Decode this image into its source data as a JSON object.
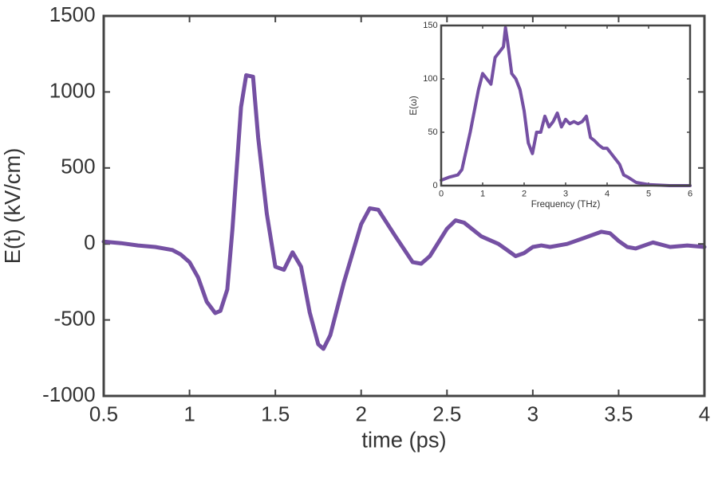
{
  "chart_data": [
    {
      "type": "line",
      "xlabel": "time (ps)",
      "ylabel": "E(t) (kV/cm)",
      "color": "#7550a3",
      "xlim": [
        0.5,
        4
      ],
      "ylim": [
        -1000,
        1500
      ],
      "xticks": [
        0.5,
        1,
        1.5,
        2,
        2.5,
        3,
        3.5,
        4
      ],
      "yticks": [
        -1000,
        -500,
        0,
        500,
        1000,
        1500
      ],
      "x": [
        0.5,
        0.6,
        0.7,
        0.8,
        0.9,
        0.95,
        1.0,
        1.05,
        1.1,
        1.15,
        1.18,
        1.22,
        1.25,
        1.3,
        1.33,
        1.37,
        1.4,
        1.45,
        1.5,
        1.55,
        1.6,
        1.65,
        1.7,
        1.75,
        1.78,
        1.82,
        1.9,
        2.0,
        2.05,
        2.1,
        2.2,
        2.3,
        2.35,
        2.4,
        2.5,
        2.55,
        2.6,
        2.7,
        2.8,
        2.85,
        2.9,
        2.95,
        3.0,
        3.05,
        3.1,
        3.2,
        3.3,
        3.4,
        3.45,
        3.5,
        3.55,
        3.6,
        3.7,
        3.8,
        3.9,
        4.0
      ],
      "values": [
        15,
        5,
        -10,
        -20,
        -40,
        -70,
        -120,
        -220,
        -380,
        -455,
        -440,
        -300,
        100,
        900,
        1110,
        1100,
        700,
        200,
        -150,
        -170,
        -55,
        -150,
        -450,
        -660,
        -690,
        -600,
        -250,
        130,
        235,
        225,
        50,
        -120,
        -130,
        -80,
        100,
        155,
        140,
        50,
        0,
        -40,
        -80,
        -60,
        -20,
        -10,
        -20,
        0,
        40,
        80,
        70,
        20,
        -20,
        -30,
        10,
        -20,
        -10,
        -20
      ]
    },
    {
      "type": "line",
      "xlabel": "Frequency (THz)",
      "ylabel": "E(ω)",
      "color": "#7550a3",
      "xlim": [
        0,
        6
      ],
      "ylim": [
        0,
        150
      ],
      "xticks": [
        0,
        1,
        2,
        3,
        4,
        5,
        6
      ],
      "yticks": [
        0,
        50,
        100,
        150
      ],
      "x": [
        0,
        0.2,
        0.4,
        0.5,
        0.7,
        0.9,
        1.0,
        1.1,
        1.2,
        1.3,
        1.4,
        1.5,
        1.55,
        1.6,
        1.7,
        1.8,
        1.9,
        2.0,
        2.1,
        2.2,
        2.3,
        2.4,
        2.5,
        2.6,
        2.7,
        2.8,
        2.9,
        3.0,
        3.1,
        3.2,
        3.3,
        3.4,
        3.5,
        3.6,
        3.7,
        3.8,
        3.9,
        4.0,
        4.1,
        4.2,
        4.3,
        4.4,
        4.5,
        4.7,
        5.0,
        5.5,
        6.0
      ],
      "values": [
        5,
        8,
        10,
        15,
        50,
        90,
        105,
        100,
        95,
        120,
        125,
        130,
        148,
        135,
        105,
        100,
        90,
        70,
        40,
        30,
        50,
        50,
        65,
        55,
        60,
        68,
        55,
        62,
        58,
        60,
        58,
        60,
        65,
        45,
        42,
        38,
        35,
        35,
        30,
        25,
        20,
        10,
        8,
        3,
        1,
        0,
        0
      ]
    }
  ]
}
